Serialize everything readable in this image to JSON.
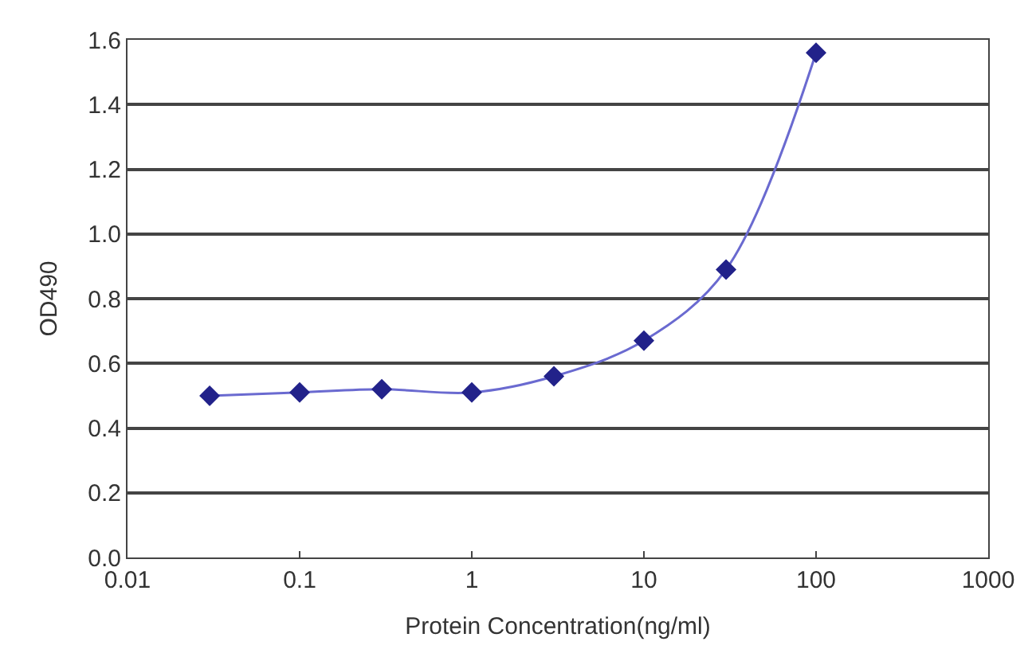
{
  "chart_data": {
    "type": "line",
    "xlabel": "Protein Concentration(ng/ml)",
    "ylabel": "OD490",
    "log": "x",
    "x": [
      0.03,
      0.1,
      0.3,
      1,
      3,
      10,
      30,
      100
    ],
    "series": [
      {
        "color": "#22228a",
        "values": [
          0.5,
          0.51,
          0.52,
          0.51,
          0.56,
          0.67,
          0.89,
          1.56
        ]
      }
    ],
    "xlim": [
      0.01,
      1000
    ],
    "xticks": [
      0.01,
      0.1,
      1,
      10,
      100,
      1000
    ],
    "ylim": [
      0,
      1.6
    ],
    "yticks": [
      {
        "value": 0,
        "label": "0.0"
      },
      0.2,
      0.4,
      0.6,
      0.8,
      {
        "value": 1,
        "label": "1.0"
      },
      1.2,
      1.4,
      1.6
    ],
    "grid": "y",
    "marker": "diamond",
    "line_style": "solid"
  }
}
